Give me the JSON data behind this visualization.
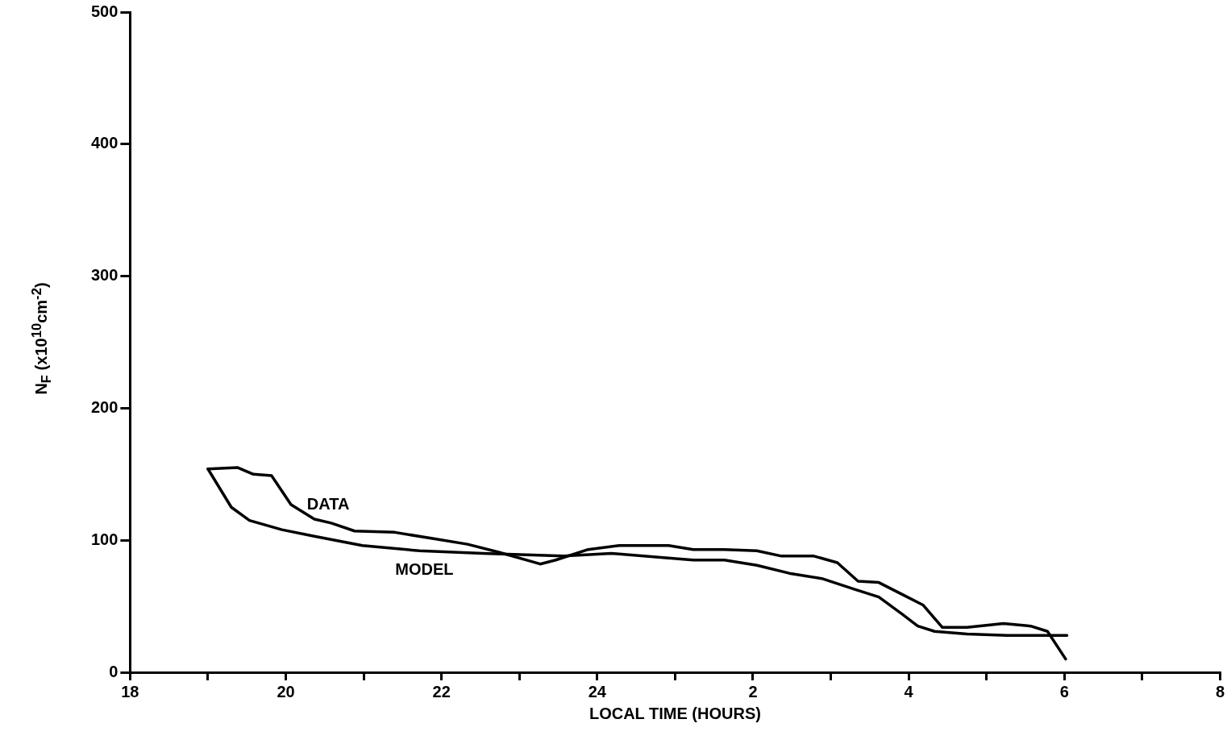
{
  "chart_data": {
    "type": "line",
    "xlabel": "LOCAL TIME (HOURS)",
    "ylabel": "N$_{F}$  (x10$^{10}$cm$^{-2}$)",
    "xlim": [
      "--01-01T18:00",
      "--01-02T08:00"
    ],
    "xticks": [
      {
        "value": "--01-01T18:00",
        "label": "18"
      },
      {
        "value": "--01-01T19:00",
        "label": null
      },
      {
        "value": "--01-01T20:00",
        "label": "20"
      },
      {
        "value": "--01-01T21:00",
        "label": null
      },
      {
        "value": "--01-01T22:00",
        "label": "22"
      },
      {
        "value": "--01-01T23:00",
        "label": null
      },
      {
        "value": "--01-02T00:00",
        "label": "24"
      },
      {
        "value": "--01-02T01:00",
        "label": null
      },
      {
        "value": "--01-02T02:00",
        "label": "2"
      },
      {
        "value": "--01-02T03:00",
        "label": null
      },
      {
        "value": "--01-02T04:00",
        "label": "4"
      },
      {
        "value": "--01-02T05:00",
        "label": null
      },
      {
        "value": "--01-02T06:00",
        "label": "6"
      },
      {
        "value": "--01-02T07:00",
        "label": null
      },
      {
        "value": "--01-02T08:00",
        "label": "8"
      }
    ],
    "ylim": [
      0,
      500
    ],
    "yticks": [
      0,
      100,
      200,
      300,
      400,
      500
    ],
    "grid": false,
    "legend": false,
    "marker": "none",
    "line_style": "solid",
    "series": [
      {
        "name": "DATA",
        "color": "#000000",
        "x": [
          "--01-01T19:00",
          "--01-01T19:23",
          "--01-01T19:35",
          "--01-01T19:49",
          "--01-01T20:04",
          "--01-01T20:22",
          "--01-01T20:35",
          "--01-01T20:53",
          "--01-01T21:24",
          "--01-01T21:55",
          "--01-01T22:20",
          "--01-01T22:44",
          "--01-01T23:09",
          "--01-01T23:16",
          "--01-01T23:28",
          "--01-01T23:53",
          "--01-02T00:17",
          "--01-02T00:55",
          "--01-02T01:14",
          "--01-02T01:38",
          "--01-02T02:03",
          "--01-02T02:22",
          "--01-02T02:47",
          "--01-02T03:05",
          "--01-02T03:21",
          "--01-02T03:37",
          "--01-02T03:55",
          "--01-02T04:11",
          "--01-02T04:26",
          "--01-02T04:45",
          "--01-02T05:13",
          "--01-02T05:34",
          "--01-02T05:47",
          "--01-02T06:01"
        ],
        "values": [
          154,
          155,
          150,
          149,
          127,
          116,
          113,
          107,
          106,
          101,
          97,
          91,
          84,
          82,
          85,
          93,
          96,
          96,
          93,
          93,
          92,
          88,
          88,
          83,
          69,
          68,
          59,
          51,
          34,
          34,
          37,
          35,
          31,
          10
        ]
      },
      {
        "name": "MODEL",
        "color": "#000000",
        "x": [
          "--01-01T19:00",
          "--01-01T19:18",
          "--01-01T19:32",
          "--01-01T19:57",
          "--01-01T20:22",
          "--01-01T20:59",
          "--01-01T21:43",
          "--01-01T22:32",
          "--01-01T23:34",
          "--01-02T00:11",
          "--01-02T00:49",
          "--01-02T01:14",
          "--01-02T01:38",
          "--01-02T02:03",
          "--01-02T02:28",
          "--01-02T02:53",
          "--01-02T03:18",
          "--01-02T03:37",
          "--01-02T03:55",
          "--01-02T04:07",
          "--01-02T04:20",
          "--01-02T04:45",
          "--01-02T05:16",
          "--01-02T05:47",
          "--01-02T06:02"
        ],
        "values": [
          154,
          125,
          115,
          108,
          103,
          96,
          92,
          90,
          88,
          90,
          87,
          85,
          85,
          81,
          75,
          71,
          63,
          57,
          44,
          35,
          31,
          29,
          28,
          28,
          28
        ]
      }
    ]
  }
}
